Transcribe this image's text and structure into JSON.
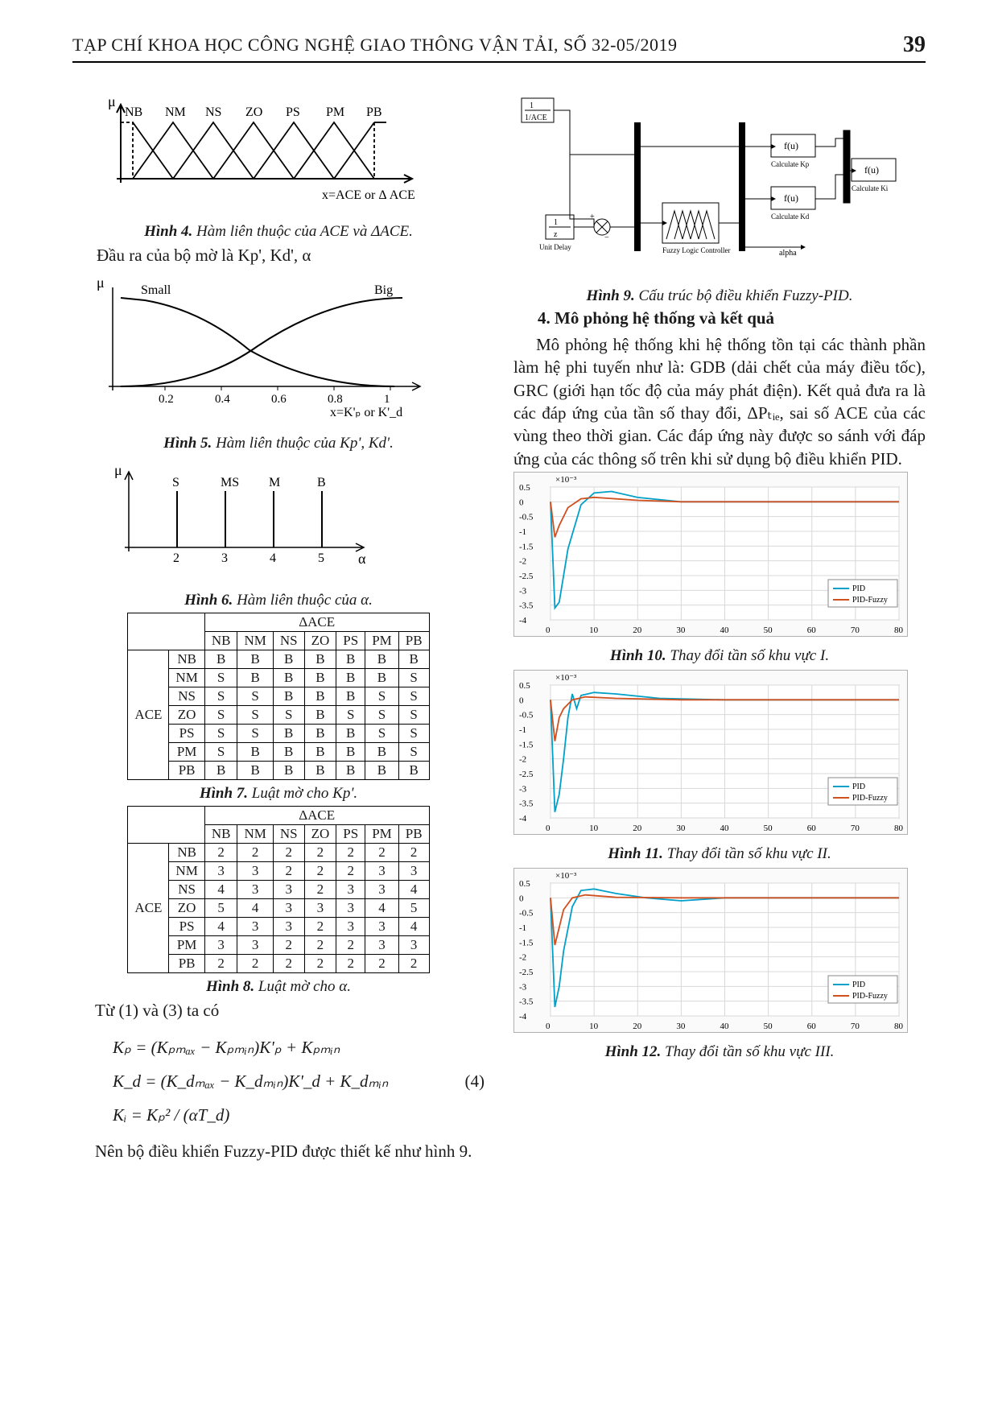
{
  "page_number": "39",
  "header": "TẠP CHÍ KHOA HỌC CÔNG NGHỆ GIAO THÔNG VẬN TẢI, SỐ 32-05/2019",
  "left": {
    "fig4": {
      "label": "Hình 4.",
      "desc": "Hàm liên thuộc của ACE và ΔACE.",
      "y_axis": "μ",
      "x_axis": "x=ACE or Δ ACE",
      "labels": [
        "NB",
        "NM",
        "NS",
        "ZO",
        "PS",
        "PM",
        "PB"
      ]
    },
    "text_after_fig4": "Đầu ra của bộ mờ là Kp', Kd', α",
    "fig5": {
      "label": "Hình 5.",
      "desc": "Hàm liên thuộc của Kp', Kd'.",
      "y_axis": "μ",
      "x_axis": "x=K'ₚ or K'_d",
      "curves": [
        "Small",
        "Big"
      ],
      "xticks": [
        "0.2",
        "0.4",
        "0.6",
        "0.8",
        "1"
      ]
    },
    "fig6": {
      "label": "Hình 6.",
      "desc": "Hàm liên thuộc của α.",
      "y_axis": "μ",
      "x_axis": "α",
      "labels": [
        "S",
        "MS",
        "M",
        "B"
      ],
      "xticks": [
        "2",
        "3",
        "4",
        "5"
      ]
    },
    "fig7": {
      "label": "Hình 7.",
      "desc": "Luật mờ cho Kp'.",
      "col_header": "ΔACE",
      "row_header": "ACE",
      "cols": [
        "NB",
        "NM",
        "NS",
        "ZO",
        "PS",
        "PM",
        "PB"
      ],
      "rows": [
        "NB",
        "NM",
        "NS",
        "ZO",
        "PS",
        "PM",
        "PB"
      ],
      "data": [
        [
          "B",
          "B",
          "B",
          "B",
          "B",
          "B",
          "B"
        ],
        [
          "S",
          "B",
          "B",
          "B",
          "B",
          "B",
          "S"
        ],
        [
          "S",
          "S",
          "B",
          "B",
          "B",
          "S",
          "S"
        ],
        [
          "S",
          "S",
          "S",
          "B",
          "S",
          "S",
          "S"
        ],
        [
          "S",
          "S",
          "B",
          "B",
          "B",
          "S",
          "S"
        ],
        [
          "S",
          "B",
          "B",
          "B",
          "B",
          "B",
          "S"
        ],
        [
          "B",
          "B",
          "B",
          "B",
          "B",
          "B",
          "B"
        ]
      ]
    },
    "fig8": {
      "label": "Hình 8.",
      "desc": "Luật mờ cho α.",
      "col_header": "ΔACE",
      "row_header": "ACE",
      "cols": [
        "NB",
        "NM",
        "NS",
        "ZO",
        "PS",
        "PM",
        "PB"
      ],
      "rows": [
        "NB",
        "NM",
        "NS",
        "ZO",
        "PS",
        "PM",
        "PB"
      ],
      "data": [
        [
          "2",
          "2",
          "2",
          "2",
          "2",
          "2",
          "2"
        ],
        [
          "3",
          "3",
          "2",
          "2",
          "2",
          "3",
          "3"
        ],
        [
          "4",
          "3",
          "3",
          "2",
          "3",
          "3",
          "4"
        ],
        [
          "5",
          "4",
          "3",
          "3",
          "3",
          "4",
          "5"
        ],
        [
          "4",
          "3",
          "3",
          "2",
          "3",
          "3",
          "4"
        ],
        [
          "3",
          "3",
          "2",
          "2",
          "2",
          "3",
          "3"
        ],
        [
          "2",
          "2",
          "2",
          "2",
          "2",
          "2",
          "2"
        ]
      ]
    },
    "text_eq_intro": "Từ (1) và (3) ta có",
    "equations": {
      "e1": "Kₚ = (Kₚₘₐₓ − Kₚₘᵢₙ)K'ₚ + Kₚₘᵢₙ",
      "e2": "K_d = (K_dₘₐₓ − K_dₘᵢₙ)K'_d + K_dₘᵢₙ",
      "e3": "Kᵢ = Kₚ² / (αT_d)",
      "num": "(4)"
    },
    "text_final": "Nên bộ điều khiển Fuzzy-PID được thiết kế như hình 9."
  },
  "right": {
    "fig9": {
      "label": "Hình 9.",
      "desc": "Cấu trúc bộ điều khiển Fuzzy-PID.",
      "blocks": {
        "input": "1/ACE",
        "delay": "1/z",
        "delay_label": "Unit Delay",
        "fuzzy": "Fuzzy Logic Controller",
        "f1": "f(u)",
        "f1_label": "Calculate Kp",
        "f2": "f(u)",
        "f2_label": "Calculate Kd",
        "f3": "f(u)",
        "f3_label": "Calculate Ki",
        "alpha": "alpha"
      }
    },
    "section4_title": "4. Mô phỏng hệ thống và kết quả",
    "para": "Mô phỏng hệ thống khi hệ thống tồn tại các thành phần làm hệ phi tuyến như là: GDB (dải chết của máy điều tốc), GRC (giới hạn tốc độ của máy phát điện). Kết quả đưa ra là các đáp ứng của tần số thay đổi, ΔPₜᵢₑ, sai số ACE của các vùng theo thời gian. Các đáp ứng này được so sánh với đáp ứng của các thông số trên khi sử dụng bộ điều khiển PID.",
    "charts": {
      "fig10": {
        "label": "Hình 10.",
        "desc": "Thay đổi tần số khu vực I."
      },
      "fig11": {
        "label": "Hình 11.",
        "desc": "Thay đổi tần số khu vực II."
      },
      "fig12": {
        "label": "Hình 12.",
        "desc": "Thay đổi tần số khu vực III."
      },
      "legend": [
        "PID",
        "PID-Fuzzy"
      ],
      "legend_colors": [
        "#00a0c8",
        "#d05020"
      ],
      "y_exp": "×10⁻³",
      "xlim": [
        0,
        80
      ],
      "xticks": [
        0,
        10,
        20,
        30,
        40,
        50,
        60,
        70,
        80
      ],
      "ylim": [
        -4,
        0.5
      ],
      "yticks": [
        0.5,
        0,
        -0.5,
        -1,
        -1.5,
        -2,
        -2.5,
        -3,
        -3.5,
        -4
      ],
      "grid_color": "#d8d8d8",
      "bg": "#ffffff",
      "pid_color": "#00a0c8",
      "fuzzy_color": "#d05020",
      "series": {
        "fig10_pid": [
          [
            0,
            0
          ],
          [
            1,
            -3.6
          ],
          [
            2,
            -3.4
          ],
          [
            4,
            -1.6
          ],
          [
            7,
            -0.1
          ],
          [
            10,
            0.3
          ],
          [
            14,
            0.35
          ],
          [
            20,
            0.15
          ],
          [
            30,
            0.0
          ],
          [
            50,
            0.0
          ],
          [
            80,
            0.0
          ]
        ],
        "fig10_fuzzy": [
          [
            0,
            0
          ],
          [
            1,
            -1.2
          ],
          [
            2,
            -0.8
          ],
          [
            4,
            -0.2
          ],
          [
            7,
            0.1
          ],
          [
            10,
            0.15
          ],
          [
            20,
            0.05
          ],
          [
            30,
            0.0
          ],
          [
            80,
            0.0
          ]
        ],
        "fig11_pid": [
          [
            0,
            0
          ],
          [
            1,
            -3.8
          ],
          [
            2,
            -3.2
          ],
          [
            3,
            -2.0
          ],
          [
            4,
            -0.6
          ],
          [
            5,
            0.2
          ],
          [
            6,
            -0.3
          ],
          [
            7,
            0.15
          ],
          [
            10,
            0.25
          ],
          [
            15,
            0.2
          ],
          [
            25,
            0.05
          ],
          [
            40,
            0.0
          ],
          [
            80,
            0.0
          ]
        ],
        "fig11_fuzzy": [
          [
            0,
            0
          ],
          [
            1,
            -1.4
          ],
          [
            2,
            -0.6
          ],
          [
            3,
            -0.3
          ],
          [
            5,
            0.0
          ],
          [
            8,
            0.1
          ],
          [
            15,
            0.05
          ],
          [
            30,
            0.0
          ],
          [
            80,
            0.0
          ]
        ],
        "fig12_pid": [
          [
            0,
            0
          ],
          [
            1,
            -3.7
          ],
          [
            2,
            -3.0
          ],
          [
            3,
            -1.8
          ],
          [
            5,
            -0.3
          ],
          [
            7,
            0.25
          ],
          [
            10,
            0.3
          ],
          [
            15,
            0.15
          ],
          [
            22,
            0.0
          ],
          [
            30,
            -0.1
          ],
          [
            40,
            0.0
          ],
          [
            80,
            0.0
          ]
        ],
        "fig12_fuzzy": [
          [
            0,
            0
          ],
          [
            1,
            -1.6
          ],
          [
            2,
            -1.0
          ],
          [
            3,
            -0.4
          ],
          [
            5,
            0.0
          ],
          [
            8,
            0.1
          ],
          [
            15,
            0.02
          ],
          [
            30,
            0.0
          ],
          [
            80,
            0.0
          ]
        ]
      }
    }
  }
}
